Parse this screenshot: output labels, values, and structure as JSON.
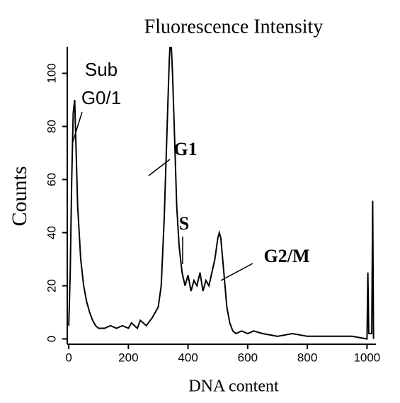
{
  "chart_data": {
    "type": "line",
    "title": "Fluorescence Intensity",
    "x_label": "DNA content",
    "y_label": "Counts",
    "annotations": [
      "Sub",
      "G0/1",
      "G1",
      "S",
      "G2/M"
    ],
    "color": "#000000",
    "xlim": [
      -5,
      1030
    ],
    "ylim": [
      -2,
      110
    ],
    "xticks": [
      0,
      200,
      400,
      600,
      800,
      1000
    ],
    "yticks": [
      0,
      20,
      40,
      60,
      80,
      100
    ],
    "series": [
      {
        "name": "Counts",
        "x": [
          0,
          5,
          10,
          15,
          20,
          25,
          30,
          40,
          50,
          60,
          70,
          80,
          90,
          100,
          120,
          140,
          160,
          180,
          200,
          210,
          220,
          230,
          240,
          260,
          280,
          290,
          300,
          310,
          320,
          330,
          337,
          342,
          348,
          355,
          362,
          370,
          380,
          390,
          400,
          410,
          420,
          430,
          440,
          450,
          460,
          470,
          480,
          490,
          500,
          505,
          510,
          520,
          530,
          540,
          550,
          560,
          580,
          600,
          620,
          650,
          700,
          750,
          800,
          850,
          900,
          950,
          1000,
          1003,
          1006,
          1016,
          1019,
          1022
        ],
        "values": [
          5,
          25,
          60,
          85,
          90,
          70,
          50,
          30,
          20,
          14,
          10,
          7,
          5,
          4,
          4,
          5,
          4,
          5,
          4,
          6,
          5,
          4,
          7,
          5,
          8,
          10,
          12,
          20,
          45,
          80,
          105,
          115,
          100,
          75,
          50,
          35,
          25,
          20,
          24,
          18,
          22,
          20,
          25,
          18,
          22,
          20,
          25,
          30,
          38,
          40,
          38,
          25,
          12,
          6,
          3,
          2,
          3,
          2,
          3,
          2,
          1,
          2,
          1,
          1,
          1,
          1,
          0,
          25,
          2,
          2,
          52,
          0
        ]
      }
    ]
  }
}
